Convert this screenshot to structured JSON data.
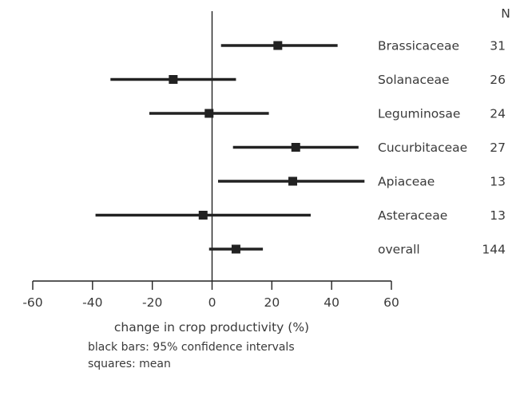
{
  "chart_data": {
    "type": "forest",
    "xlabel": "change in crop productivity (%)",
    "xlim": [
      -60,
      60
    ],
    "xticks": [
      -60,
      -40,
      -20,
      0,
      20,
      40,
      60
    ],
    "n_header": "N",
    "rows": [
      {
        "label": "Brassicaceae",
        "mean": 22,
        "lower": 3,
        "upper": 42,
        "n": "31"
      },
      {
        "label": "Solanaceae",
        "mean": -13,
        "lower": -34,
        "upper": 8,
        "n": "26"
      },
      {
        "label": "Leguminosae",
        "mean": -1,
        "lower": -21,
        "upper": 19,
        "n": "24"
      },
      {
        "label": "Cucurbitaceae",
        "mean": 28,
        "lower": 7,
        "upper": 49,
        "n": "27"
      },
      {
        "label": "Apiaceae",
        "mean": 27,
        "lower": 2,
        "upper": 51,
        "n": "13"
      },
      {
        "label": "Asteraceae",
        "mean": -3,
        "lower": -39,
        "upper": 33,
        "n": "13"
      },
      {
        "label": "overall",
        "mean": 8,
        "lower": -1,
        "upper": 17,
        "n": "144"
      }
    ],
    "bar_color": "#222222",
    "marker_color": "#222222"
  },
  "notes": {
    "line1": "black bars: 95% confidence intervals",
    "line2": "squares: mean"
  }
}
